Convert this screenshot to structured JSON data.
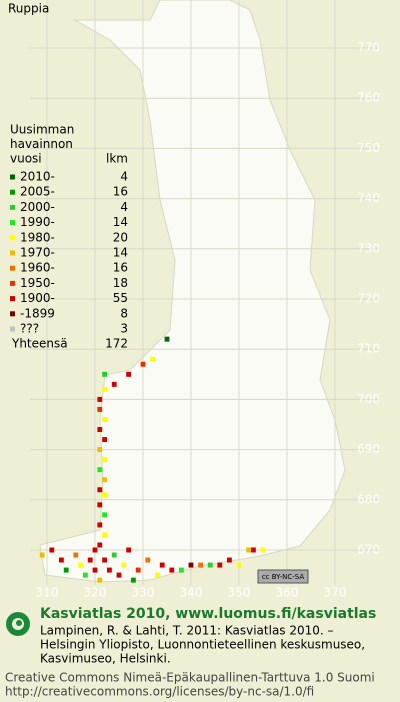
{
  "title": "Ruppia",
  "axes": {
    "x_ticks": [
      310,
      320,
      330,
      340,
      350,
      360,
      370
    ],
    "y_ticks": [
      770,
      760,
      750,
      740,
      730,
      720,
      710,
      700,
      690,
      680,
      670
    ]
  },
  "legend": {
    "title": [
      "Uusimman",
      "havainnon",
      "vuosi"
    ],
    "count_header": "lkm",
    "rows": [
      {
        "label": "2010-",
        "count": 4,
        "color": "#006400"
      },
      {
        "label": "2005-",
        "count": 16,
        "color": "#009a00"
      },
      {
        "label": "2000-",
        "count": 4,
        "color": "#2ecc2e"
      },
      {
        "label": "1990-",
        "count": 14,
        "color": "#22e622"
      },
      {
        "label": "1980-",
        "count": 20,
        "color": "#ffff00"
      },
      {
        "label": "1970-",
        "count": 14,
        "color": "#e8c000"
      },
      {
        "label": "1960-",
        "count": 16,
        "color": "#f07000"
      },
      {
        "label": "1950-",
        "count": 18,
        "color": "#e83000"
      },
      {
        "label": "1900-",
        "count": 55,
        "color": "#cc0000"
      },
      {
        "label": "-1899",
        "count": 8,
        "color": "#800000"
      },
      {
        "label": "???",
        "count": 3,
        "color": "#c0c0c0"
      }
    ],
    "total": {
      "label": "Yhteensä",
      "count": 172
    }
  },
  "observations": [
    [
      335,
      712,
      0
    ],
    [
      332,
      708,
      4
    ],
    [
      330,
      707,
      7
    ],
    [
      327,
      705,
      8
    ],
    [
      324,
      703,
      8
    ],
    [
      322,
      705,
      2
    ],
    [
      322,
      702,
      4
    ],
    [
      321,
      700,
      8
    ],
    [
      321,
      698,
      7
    ],
    [
      322,
      696,
      4
    ],
    [
      321,
      694,
      8
    ],
    [
      322,
      692,
      8
    ],
    [
      321,
      690,
      5
    ],
    [
      322,
      688,
      4
    ],
    [
      321,
      686,
      3
    ],
    [
      322,
      684,
      5
    ],
    [
      321,
      682,
      8
    ],
    [
      322,
      681,
      4
    ],
    [
      321,
      679,
      8
    ],
    [
      322,
      677,
      3
    ],
    [
      321,
      675,
      8
    ],
    [
      322,
      673,
      4
    ],
    [
      321,
      671,
      8
    ],
    [
      309,
      669,
      5
    ],
    [
      311,
      670,
      8
    ],
    [
      313,
      668,
      8
    ],
    [
      314,
      666,
      1
    ],
    [
      316,
      669,
      6
    ],
    [
      317,
      667,
      4
    ],
    [
      318,
      665,
      3
    ],
    [
      319,
      668,
      8
    ],
    [
      320,
      670,
      8
    ],
    [
      320,
      666,
      8
    ],
    [
      321,
      664,
      5
    ],
    [
      322,
      668,
      8
    ],
    [
      323,
      666,
      8
    ],
    [
      324,
      669,
      2
    ],
    [
      325,
      665,
      8
    ],
    [
      326,
      667,
      4
    ],
    [
      327,
      670,
      8
    ],
    [
      328,
      664,
      1
    ],
    [
      329,
      666,
      7
    ],
    [
      331,
      668,
      6
    ],
    [
      333,
      665,
      4
    ],
    [
      334,
      667,
      8
    ],
    [
      336,
      666,
      8
    ],
    [
      338,
      666,
      3
    ],
    [
      340,
      667,
      9
    ],
    [
      342,
      667,
      6
    ],
    [
      344,
      667,
      2
    ],
    [
      346,
      667,
      8
    ],
    [
      348,
      668,
      8
    ],
    [
      350,
      667,
      4
    ],
    [
      352,
      670,
      5
    ],
    [
      353,
      670,
      8
    ],
    [
      355,
      670,
      4
    ]
  ],
  "badge": "cc BY-NC-SA",
  "footer": {
    "heading": "Kasviatlas 2010, www.luomus.fi/kasviatlas",
    "citation": [
      "Lampinen, R. & Lahti, T. 2011: Kasviatlas 2010. –",
      "Helsingin Yliopisto, Luonnontieteellinen keskusmuseo,",
      "Kasvimuseo, Helsinki."
    ],
    "license": [
      "Creative Commons Nimeä-Epäkaupallinen-Tarttuva 1.0 Suomi",
      "http://creativecommons.org/licenses/by-nc-sa/1.0/fi"
    ]
  }
}
